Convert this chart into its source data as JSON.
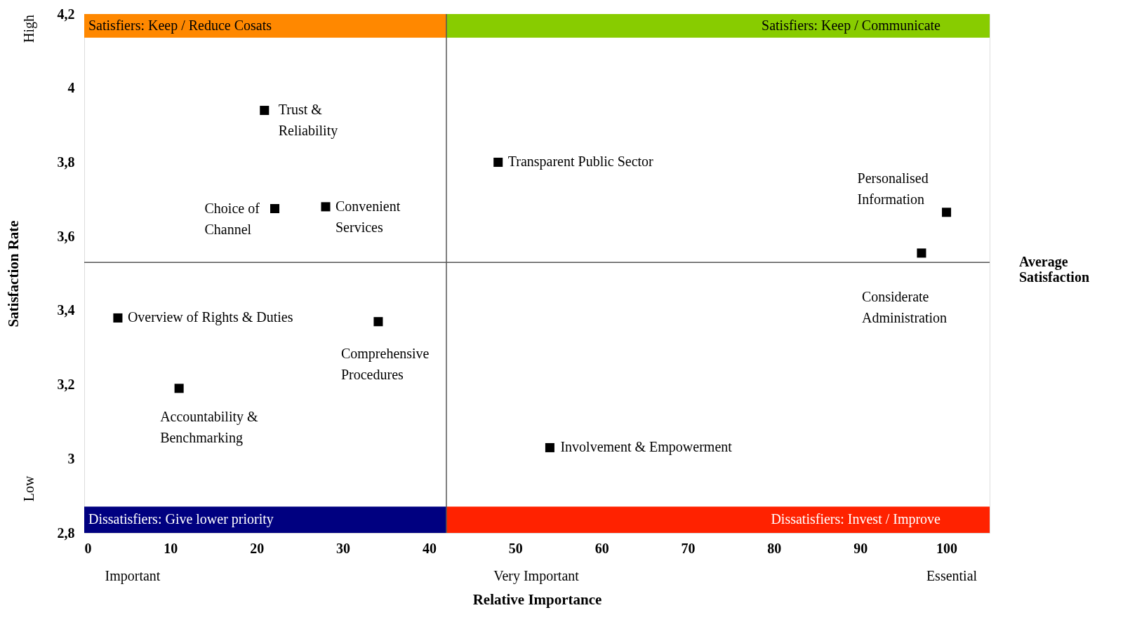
{
  "chart_data": {
    "type": "scatter",
    "xlabel": "Relative Importance",
    "ylabel": "Satisfaction Rate",
    "x": [
      20.9,
      22.1,
      28.0,
      48.0,
      100,
      97.1,
      3.9,
      34.1,
      11.0,
      54.0
    ],
    "values": [
      3.94,
      3.675,
      3.68,
      3.8,
      3.665,
      3.555,
      3.38,
      3.37,
      3.19,
      3.03
    ],
    "color": "#000000",
    "marker": "square",
    "xlim": [
      0,
      105
    ],
    "ylim": [
      2.8,
      4.2
    ],
    "xticks": [
      0,
      10,
      20,
      30,
      40,
      50,
      60,
      70,
      80,
      90,
      100
    ],
    "yticks": [
      {
        "value": 2.8,
        "label": "2,8"
      },
      {
        "value": 3,
        "label": "3"
      },
      {
        "value": 3.2,
        "label": "3,2"
      },
      {
        "value": 3.4,
        "label": "3,4"
      },
      {
        "value": 3.6,
        "label": "3,6"
      },
      {
        "value": 3.8,
        "label": "3,8"
      },
      {
        "value": 4,
        "label": "4"
      },
      {
        "value": 4.2,
        "label": "4,2"
      }
    ],
    "grid": false,
    "ref_lines": [
      {
        "axis": "y",
        "value": 3.53,
        "label": "Average Satisfaction",
        "color": "#555555"
      },
      {
        "axis": "x",
        "value": 42,
        "label": null,
        "color": "#555555"
      }
    ],
    "bands": [
      {
        "axis": "y",
        "from": 4.136,
        "to": 4.2,
        "label": "Satisfiers: Keep / Reduce Cosats",
        "color": "#ff8800"
      },
      {
        "axis": "y",
        "from": 4.136,
        "to": 4.2,
        "label": "Satisfiers: Keep / Communicate",
        "color": "#88cc00"
      },
      {
        "axis": "y",
        "from": 2.8,
        "to": 2.871,
        "label": "Dissatisfiers: Give lower priority",
        "color": "#000080"
      },
      {
        "axis": "y",
        "from": 2.8,
        "to": 2.871,
        "label": "Dissatisfiers: Invest / Improve",
        "color": "#ff2200"
      }
    ],
    "annotations": [
      {
        "text": "Trust &\nReliability",
        "x": 20.9,
        "y": 3.94
      },
      {
        "text": "Choice of\nChannel",
        "x": 22.1,
        "y": 3.675
      },
      {
        "text": "Convenient\nServices",
        "x": 28.0,
        "y": 3.68
      },
      {
        "text": "Transparent Public Sector",
        "x": 48.0,
        "y": 3.8
      },
      {
        "text": "Personalised\nInformation",
        "x": 100,
        "y": 3.665
      },
      {
        "text": "Considerate\nAdministration",
        "x": 97.1,
        "y": 3.555
      },
      {
        "text": "Overview of Rights & Duties",
        "x": 3.9,
        "y": 3.38
      },
      {
        "text": "Comprehensive\nProcedures",
        "x": 34.1,
        "y": 3.37
      },
      {
        "text": "Accountability &\nBenchmarking",
        "x": 11.0,
        "y": 3.19
      },
      {
        "text": "Involvement & Empowerment",
        "x": 54.0,
        "y": 3.03
      },
      "Important",
      "Very Important",
      "Essential",
      "High",
      "Low"
    ]
  }
}
